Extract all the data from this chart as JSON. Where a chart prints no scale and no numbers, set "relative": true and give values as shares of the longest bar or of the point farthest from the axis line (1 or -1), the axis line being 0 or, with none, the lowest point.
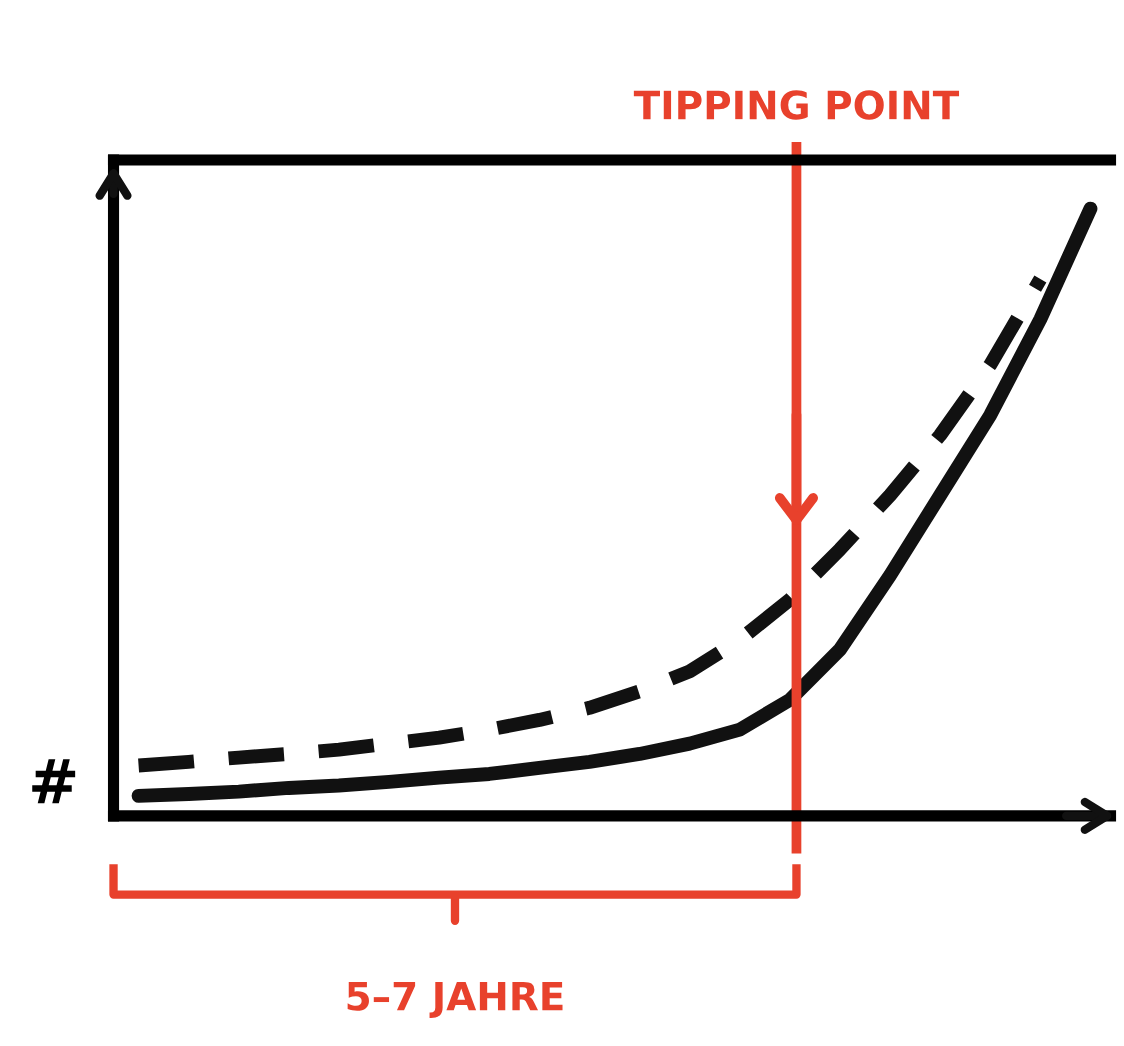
{
  "chart_data": {
    "type": "line",
    "relative": true,
    "ylabel": "#",
    "categories": [
      null,
      null,
      null,
      null,
      null,
      null,
      null,
      null,
      null,
      null,
      null,
      null,
      null,
      null,
      null,
      null,
      null,
      null,
      null,
      null
    ],
    "series": [
      {
        "color": "#111111",
        "line_style": "solid",
        "values": [
          0.033,
          0.036,
          0.04,
          0.046,
          0.05,
          0.056,
          0.063,
          0.069,
          0.079,
          0.089,
          0.102,
          0.119,
          0.142,
          0.191,
          0.274,
          0.396,
          0.528,
          0.66,
          0.818,
          1
        ]
      },
      {
        "color": "#111111",
        "line_style": "dashed",
        "values": [
          0.083,
          0.089,
          0.096,
          0.102,
          0.109,
          0.119,
          0.129,
          0.142,
          0.158,
          0.178,
          0.205,
          0.238,
          0.29,
          0.356,
          0.439,
          0.528,
          0.627,
          0.743,
          0.884,
          null
        ]
      }
    ],
    "annotations": [
      "TIPPING POINT",
      "5–7 JAHRE"
    ],
    "grid": false,
    "legend": false,
    "marker": "none"
  }
}
